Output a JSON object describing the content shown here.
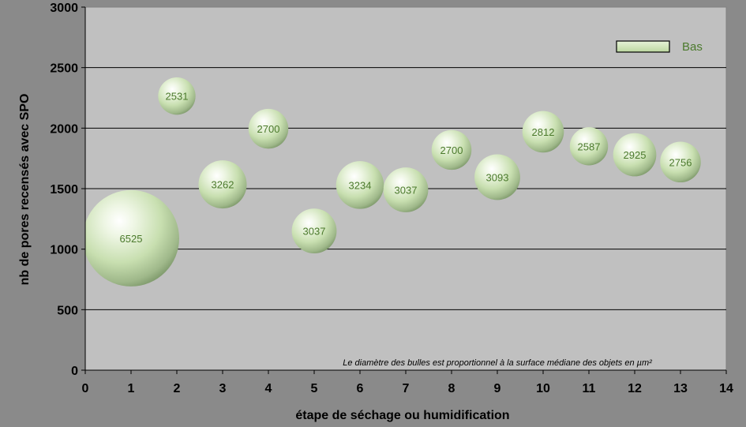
{
  "chart_data": {
    "type": "bubble",
    "xlabel": "étape de séchage ou humidification",
    "ylabel": "nb de pores recensés avec SPO",
    "xlim": [
      0,
      14
    ],
    "ylim": [
      0,
      3000
    ],
    "x_ticks": [
      0,
      1,
      2,
      3,
      4,
      5,
      6,
      7,
      8,
      9,
      10,
      11,
      12,
      13,
      14
    ],
    "y_ticks": [
      0,
      500,
      1000,
      1500,
      2000,
      2500,
      3000
    ],
    "grid": "horizontal",
    "legend": {
      "position": "top-right",
      "entries": [
        "Bas"
      ]
    },
    "annotation": "Le diamètre des bulles est proportionnel à la surface médiane des objets en µm²",
    "series": [
      {
        "name": "Bas",
        "color": "#c8e0b0",
        "points": [
          {
            "x": 1,
            "y": 1090,
            "size": 6525
          },
          {
            "x": 2,
            "y": 2265,
            "size": 2531
          },
          {
            "x": 3,
            "y": 1535,
            "size": 3262
          },
          {
            "x": 4,
            "y": 1995,
            "size": 2700
          },
          {
            "x": 5,
            "y": 1150,
            "size": 3037
          },
          {
            "x": 6,
            "y": 1530,
            "size": 3234
          },
          {
            "x": 7,
            "y": 1490,
            "size": 3037
          },
          {
            "x": 8,
            "y": 1820,
            "size": 2700
          },
          {
            "x": 9,
            "y": 1595,
            "size": 3093
          },
          {
            "x": 10,
            "y": 1970,
            "size": 2812
          },
          {
            "x": 11,
            "y": 1850,
            "size": 2587
          },
          {
            "x": 12,
            "y": 1780,
            "size": 2925
          },
          {
            "x": 13,
            "y": 1720,
            "size": 2756
          }
        ]
      }
    ]
  }
}
